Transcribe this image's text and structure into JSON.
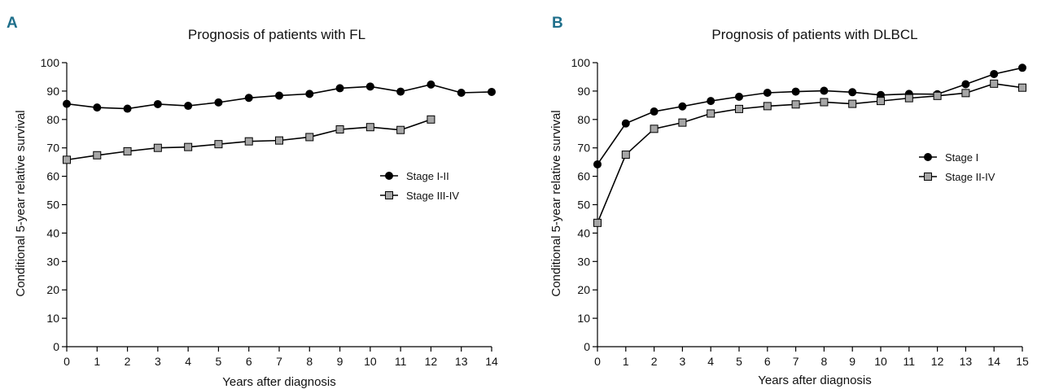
{
  "chart_data": [
    {
      "panel": "A",
      "type": "line",
      "title": "Prognosis of patients with FL",
      "xlabel": "Years after diagnosis",
      "ylabel": "Conditional 5-year relative survival",
      "xlim": [
        0,
        14
      ],
      "ylim": [
        0,
        100
      ],
      "xticks": [
        0,
        1,
        2,
        3,
        4,
        5,
        6,
        7,
        8,
        9,
        10,
        11,
        12,
        13,
        14
      ],
      "yticks": [
        0,
        10,
        20,
        30,
        40,
        50,
        60,
        70,
        80,
        90,
        100
      ],
      "grid": false,
      "legend_position": "right",
      "series": [
        {
          "name": "Stage I-II",
          "marker": "circle",
          "marker_color": "#000000",
          "x": [
            0,
            1,
            2,
            3,
            4,
            5,
            6,
            7,
            8,
            9,
            10,
            11,
            12,
            13,
            14
          ],
          "y": [
            85.5,
            84.2,
            83.8,
            85.4,
            84.8,
            86.0,
            87.6,
            88.4,
            89.0,
            91.0,
            91.6,
            89.8,
            92.3,
            89.4,
            89.7
          ]
        },
        {
          "name": "Stage III-IV",
          "marker": "square",
          "marker_color": "#a6a6a6",
          "x": [
            0,
            1,
            2,
            3,
            4,
            5,
            6,
            7,
            8,
            9,
            10,
            11,
            12
          ],
          "y": [
            65.8,
            67.4,
            68.8,
            70.0,
            70.3,
            71.3,
            72.3,
            72.6,
            73.8,
            76.5,
            77.3,
            76.3,
            80.0
          ]
        }
      ]
    },
    {
      "panel": "B",
      "type": "line",
      "title": "Prognosis of patients with DLBCL",
      "xlabel": "Years after diagnosis",
      "ylabel": "Conditional 5-year relative survival",
      "xlim": [
        0,
        15
      ],
      "ylim": [
        0,
        100
      ],
      "xticks": [
        0,
        1,
        2,
        3,
        4,
        5,
        6,
        7,
        8,
        9,
        10,
        11,
        12,
        13,
        14,
        15
      ],
      "yticks": [
        0,
        10,
        20,
        30,
        40,
        50,
        60,
        70,
        80,
        90,
        100
      ],
      "grid": false,
      "legend_position": "right",
      "series": [
        {
          "name": "Stage I",
          "marker": "circle",
          "marker_color": "#000000",
          "x": [
            0,
            1,
            2,
            3,
            4,
            5,
            6,
            7,
            8,
            9,
            10,
            11,
            12,
            13,
            14,
            15
          ],
          "y": [
            64.2,
            78.6,
            82.8,
            84.6,
            86.5,
            88.0,
            89.4,
            89.8,
            90.1,
            89.6,
            88.6,
            89.0,
            88.9,
            92.4,
            96.0,
            98.2
          ]
        },
        {
          "name": "Stage II-IV",
          "marker": "square",
          "marker_color": "#a6a6a6",
          "x": [
            0,
            1,
            2,
            3,
            4,
            5,
            6,
            7,
            8,
            9,
            10,
            11,
            12,
            13,
            14,
            15
          ],
          "y": [
            43.6,
            67.6,
            76.7,
            78.9,
            82.1,
            83.7,
            84.7,
            85.3,
            86.1,
            85.5,
            86.5,
            87.5,
            88.3,
            89.3,
            92.6,
            91.2
          ]
        }
      ]
    }
  ]
}
